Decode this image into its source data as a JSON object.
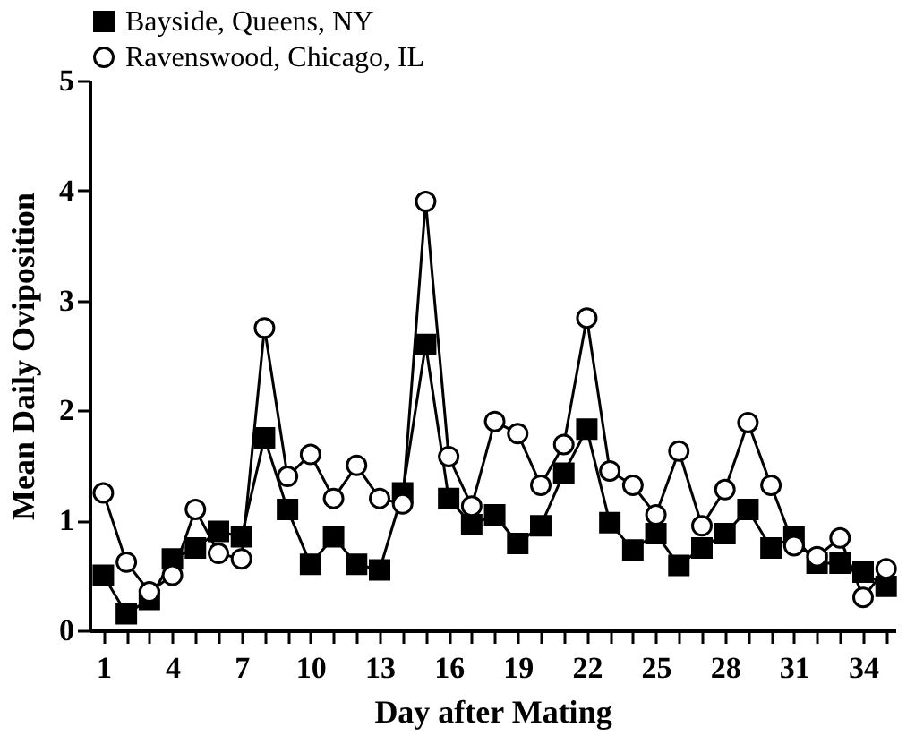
{
  "chart_data": {
    "type": "line",
    "xlabel": "Day after Mating",
    "ylabel": "Mean Daily Oviposition",
    "x": [
      1,
      2,
      3,
      4,
      5,
      6,
      7,
      8,
      9,
      10,
      11,
      12,
      13,
      14,
      15,
      16,
      17,
      18,
      19,
      20,
      21,
      22,
      23,
      24,
      25,
      26,
      27,
      28,
      29,
      30,
      31,
      32,
      33,
      34,
      35
    ],
    "series": [
      {
        "name": "Bayside, Queens,  NY",
        "color": "#000000",
        "marker": "square",
        "values": [
          0.5,
          0.15,
          0.28,
          0.65,
          0.75,
          0.9,
          0.85,
          1.75,
          1.1,
          0.6,
          0.85,
          0.6,
          0.55,
          1.25,
          2.6,
          1.2,
          0.96,
          1.05,
          0.79,
          0.95,
          1.43,
          1.83,
          0.98,
          0.73,
          0.88,
          0.59,
          0.75,
          0.88,
          1.1,
          0.75,
          0.85,
          0.61,
          0.61,
          0.53,
          0.4
        ]
      },
      {
        "name": "Ravenswood, Chicago, IL",
        "color": "#000000",
        "marker": "circle",
        "values": [
          1.25,
          0.62,
          0.35,
          0.5,
          1.1,
          0.7,
          0.65,
          2.75,
          1.4,
          1.6,
          1.2,
          1.5,
          1.2,
          1.15,
          3.9,
          1.58,
          1.13,
          1.9,
          1.79,
          1.32,
          1.69,
          2.84,
          1.45,
          1.32,
          1.05,
          1.63,
          0.95,
          1.28,
          1.89,
          1.32,
          0.77,
          0.67,
          0.84,
          0.3,
          0.56
        ]
      }
    ],
    "xlim": [
      0.4,
      35.4
    ],
    "xticks": [
      1,
      {
        "value": 2,
        "label": null
      },
      {
        "value": 3,
        "label": null
      },
      4,
      {
        "value": 5,
        "label": null
      },
      {
        "value": 6,
        "label": null
      },
      7,
      {
        "value": 8,
        "label": null
      },
      {
        "value": 9,
        "label": null
      },
      10,
      {
        "value": 11,
        "label": null
      },
      {
        "value": 12,
        "label": null
      },
      13,
      {
        "value": 14,
        "label": null
      },
      {
        "value": 15,
        "label": null
      },
      16,
      {
        "value": 17,
        "label": null
      },
      {
        "value": 18,
        "label": null
      },
      19,
      {
        "value": 20,
        "label": null
      },
      {
        "value": 21,
        "label": null
      },
      22,
      {
        "value": 23,
        "label": null
      },
      {
        "value": 24,
        "label": null
      },
      25,
      {
        "value": 26,
        "label": null
      },
      {
        "value": 27,
        "label": null
      },
      28,
      {
        "value": 29,
        "label": null
      },
      {
        "value": 30,
        "label": null
      },
      31,
      {
        "value": 32,
        "label": null
      },
      {
        "value": 33,
        "label": null
      },
      34,
      {
        "value": 35,
        "label": null
      }
    ],
    "ylim": [
      0,
      5
    ],
    "yticks": [
      0,
      1,
      2,
      3,
      4,
      5
    ],
    "grid": false,
    "legend": "top",
    "line_style": "solid"
  }
}
